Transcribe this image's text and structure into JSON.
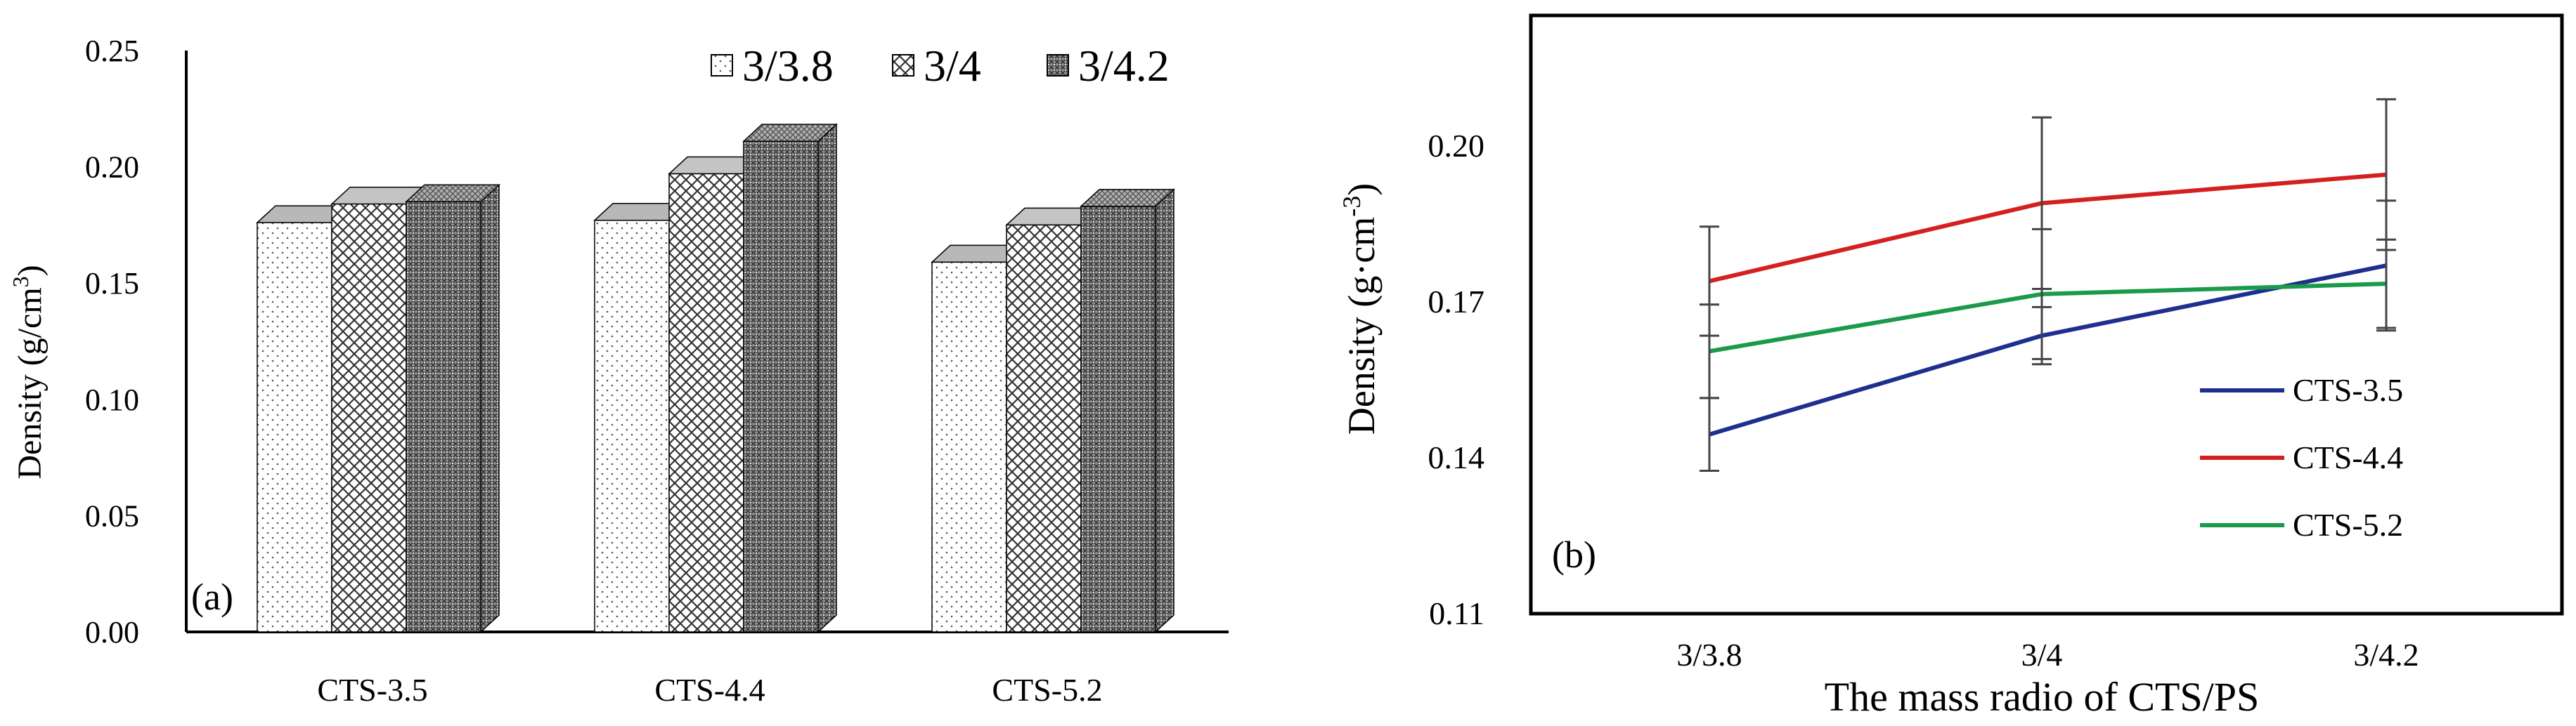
{
  "chart_data": [
    {
      "type": "bar",
      "panel_label": "(a)",
      "categories": [
        "CTS-3.5",
        "CTS-4.4",
        "CTS-5.2"
      ],
      "series": [
        {
          "name": "3/3.8",
          "values": [
            0.176,
            0.177,
            0.159
          ],
          "pattern": "dots"
        },
        {
          "name": "3/4",
          "values": [
            0.184,
            0.197,
            0.175
          ],
          "pattern": "crosshatch"
        },
        {
          "name": "3/4.2",
          "values": [
            0.185,
            0.211,
            0.183
          ],
          "pattern": "dense"
        }
      ],
      "ylabel": "Density (g/cm",
      "ylabel_sup": "3",
      "ylabel_close": ")",
      "ylim": [
        0,
        0.25
      ],
      "yticks": [
        "0.00",
        "0.05",
        "0.10",
        "0.15",
        "0.20",
        "0.25"
      ],
      "legend_position": "top-right",
      "grid": false
    },
    {
      "type": "line",
      "panel_label": "(b)",
      "x": [
        "3/3.8",
        "3/4",
        "3/4.2"
      ],
      "series": [
        {
          "name": "CTS-3.5",
          "values": [
            0.1445,
            0.1635,
            0.177
          ],
          "err": [
            0.007,
            0.0055,
            0.0125
          ],
          "color": "#1f2f8f"
        },
        {
          "name": "CTS-4.4",
          "values": [
            0.174,
            0.189,
            0.1945
          ],
          "err": [
            0.0105,
            0.0165,
            0.0145
          ],
          "color": "#d42020"
        },
        {
          "name": "CTS-5.2",
          "values": [
            0.1605,
            0.1715,
            0.1735
          ],
          "err": [
            0.009,
            0.0125,
            0.0085
          ],
          "color": "#1a9a4a"
        }
      ],
      "xlabel": "The mass radio of  CTS/PS",
      "ylabel": "Density  (g·cm",
      "ylabel_sup": "-3",
      "ylabel_close": ")",
      "ylim": [
        0.11,
        0.22
      ],
      "yticks": [
        "0.11",
        "0.14",
        "0.17",
        "0.20"
      ],
      "legend_position": "bottom-right",
      "grid": false
    }
  ]
}
